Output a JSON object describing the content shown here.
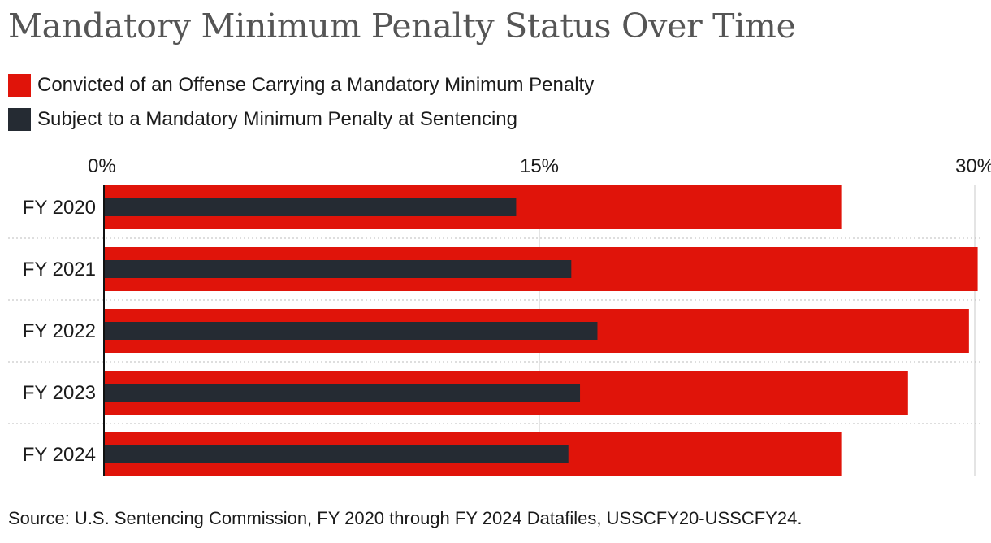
{
  "title": "Mandatory Minimum Penalty Status Over Time",
  "source": "Source: U.S. Sentencing Commission, FY 2020 through FY 2024 Datafiles, USSCFY20-USSCFY24.",
  "colors": {
    "convicted": "#e0140a",
    "subject": "#252b33",
    "grid": "#c8c8c8",
    "axis": "#111111"
  },
  "chart_data": {
    "type": "bar",
    "orientation": "horizontal",
    "categories": [
      "FY 2020",
      "FY 2021",
      "FY 2022",
      "FY 2023",
      "FY 2024"
    ],
    "series": [
      {
        "name": "Convicted of an Offense Carrying a Mandatory Minimum Penalty",
        "color": "#e0140a",
        "values": [
          25.4,
          30.1,
          29.8,
          27.7,
          25.4
        ]
      },
      {
        "name": "Subject to a Mandatory Minimum Penalty at Sentencing",
        "color": "#252b33",
        "values": [
          14.2,
          16.1,
          17.0,
          16.4,
          16.0
        ]
      }
    ],
    "xlim": [
      0,
      30
    ],
    "xticks": [
      0,
      15,
      30
    ],
    "xtick_labels": [
      "0%",
      "15%",
      "30%"
    ],
    "grid": true,
    "legend_position": "top-left"
  }
}
